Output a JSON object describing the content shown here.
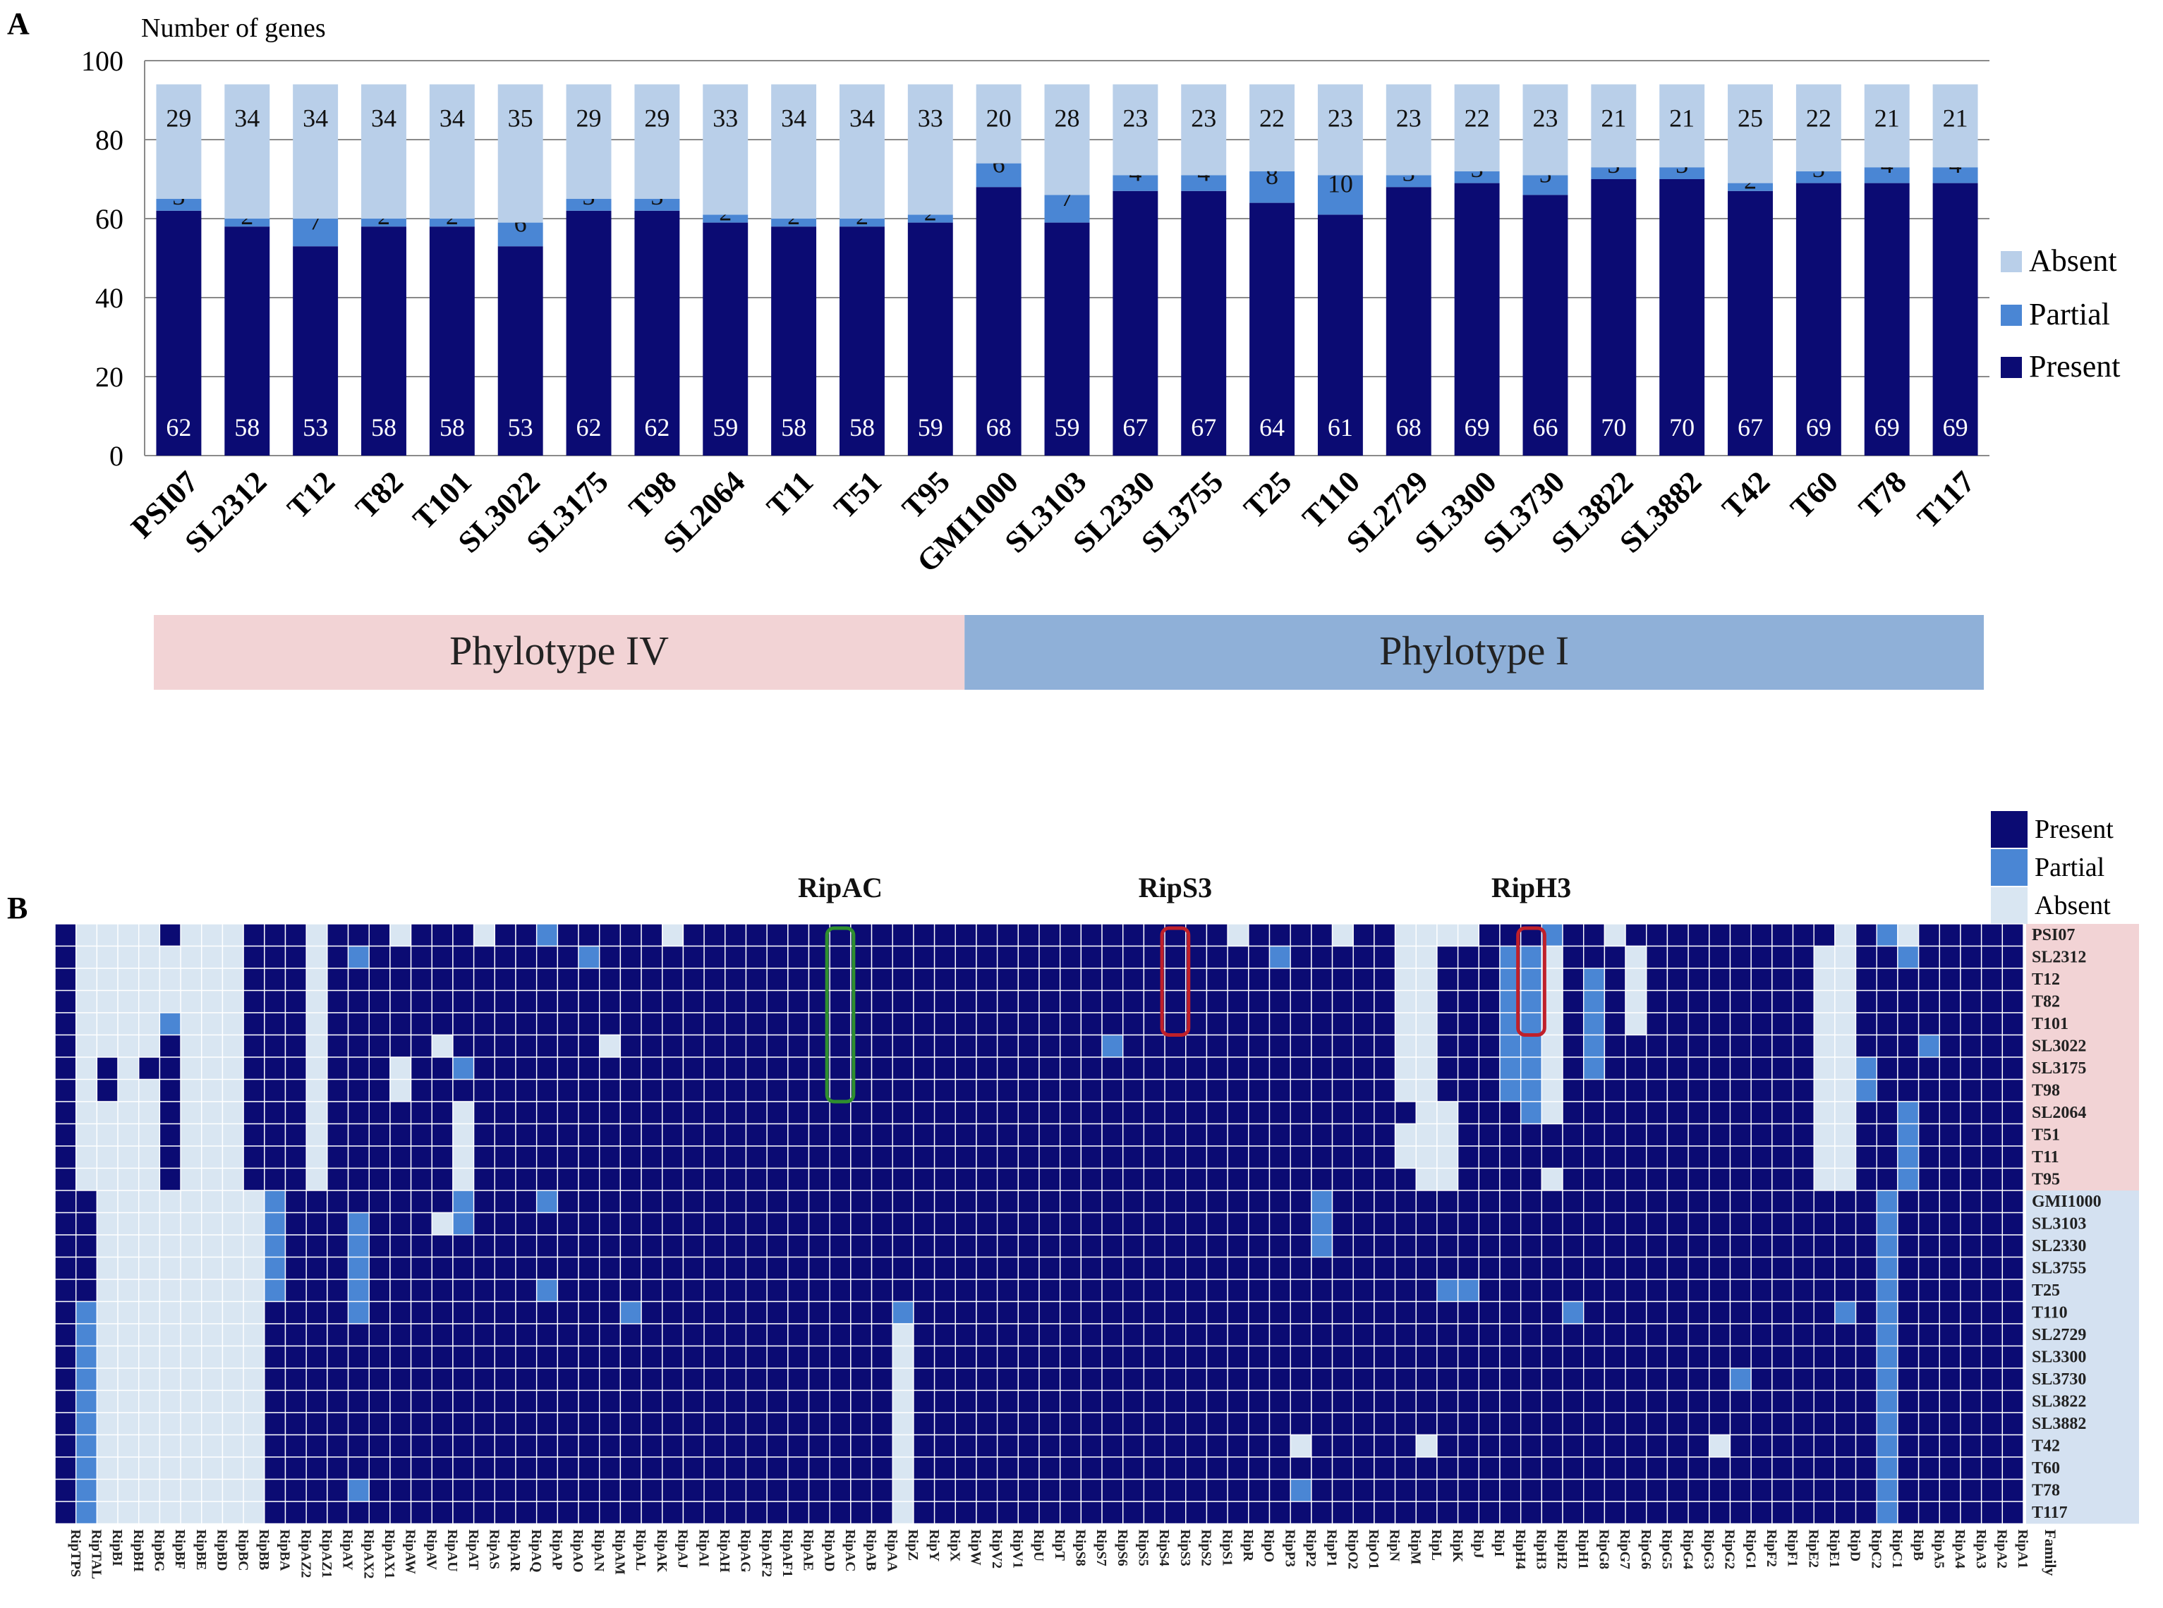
{
  "chart_data": [
    {
      "panel_label": "A",
      "type": "bar",
      "stacked": true,
      "ylabel": "Number of genes",
      "ylim": [
        0,
        100
      ],
      "yticks": [
        0,
        20,
        40,
        60,
        80,
        100
      ],
      "categories": [
        "PSI07",
        "SL2312",
        "T12",
        "T82",
        "T101",
        "SL3022",
        "SL3175",
        "T98",
        "SL2064",
        "T11",
        "T51",
        "T95",
        "GMI1000",
        "SL3103",
        "SL2330",
        "SL3755",
        "T25",
        "T110",
        "SL2729",
        "SL3300",
        "SL3730",
        "SL3822",
        "SL3882",
        "T42",
        "T60",
        "T78",
        "T117"
      ],
      "series": [
        {
          "name": "Present",
          "color": "#0b0b73",
          "values": [
            62,
            58,
            53,
            58,
            58,
            53,
            62,
            62,
            59,
            58,
            58,
            59,
            68,
            59,
            67,
            67,
            64,
            61,
            68,
            69,
            66,
            70,
            70,
            67,
            69,
            69,
            69
          ]
        },
        {
          "name": "Partial",
          "color": "#4a86d4",
          "values": [
            3,
            2,
            7,
            2,
            2,
            6,
            3,
            3,
            2,
            2,
            2,
            2,
            6,
            7,
            4,
            4,
            8,
            10,
            3,
            3,
            5,
            3,
            3,
            2,
            3,
            4,
            4
          ]
        },
        {
          "name": "Absent",
          "color": "#b9cfe9",
          "values": [
            29,
            34,
            34,
            34,
            34,
            35,
            29,
            29,
            33,
            34,
            34,
            33,
            20,
            28,
            23,
            23,
            22,
            23,
            23,
            22,
            23,
            21,
            21,
            25,
            22,
            21,
            21
          ]
        }
      ],
      "legend": {
        "position": "right",
        "items": [
          "Absent",
          "Partial",
          "Present"
        ]
      },
      "groups": [
        {
          "label": "Phylotype  IV",
          "color": "#f2d3d5",
          "start": 0,
          "end": 11
        },
        {
          "label": "Phylotype  I",
          "color": "#8fb0d8",
          "start": 12,
          "end": 26
        }
      ]
    },
    {
      "panel_label": "B",
      "type": "heatmap",
      "legend": {
        "position": "top-right",
        "items": [
          {
            "label": "Present",
            "color": "#0b0b73"
          },
          {
            "label": "Partial",
            "color": "#4a86d4"
          },
          {
            "label": "Absent",
            "color": "#d9e6f2"
          }
        ]
      },
      "strains": [
        "PSI07",
        "SL2312",
        "T12",
        "T82",
        "T101",
        "SL3022",
        "SL3175",
        "T98",
        "SL2064",
        "T51",
        "T11",
        "T95",
        "GMI1000",
        "SL3103",
        "SL2330",
        "SL3755",
        "T25",
        "T110",
        "SL2729",
        "SL3300",
        "SL3730",
        "SL3822",
        "SL3882",
        "T42",
        "T60",
        "T78",
        "T117"
      ],
      "phylotype_iv_rows": 12,
      "x_axis_last_label": "Family",
      "families": [
        "RipTPS",
        "RipTAL",
        "RipBI",
        "RipBH",
        "RipBG",
        "RipBF",
        "RipBE",
        "RipBD",
        "RipBC",
        "RipBB",
        "RipBA",
        "RipAZ2",
        "RipAZ1",
        "RipAY",
        "RipAX2",
        "RipAX1",
        "RipAW",
        "RipAV",
        "RipAU",
        "RipAT",
        "RipAS",
        "RipAR",
        "RipAQ",
        "RipAP",
        "RipAO",
        "RipAN",
        "RipAM",
        "RipAL",
        "RipAK",
        "RipAJ",
        "RipAI",
        "RipAH",
        "RipAG",
        "RipAF2",
        "RipAF1",
        "RipAE",
        "RipAD",
        "RipAC",
        "RipAB",
        "RipAA",
        "RipZ",
        "RipY",
        "RipX",
        "RipW",
        "RipV2",
        "RipV1",
        "RipU",
        "RipT",
        "RipS8",
        "RipS7",
        "RipS6",
        "RipS5",
        "RipS4",
        "RipS3",
        "RipS2",
        "RipS1",
        "RipR",
        "RipO",
        "RipP3",
        "RipP2",
        "RipP1",
        "RipO2",
        "RipO1",
        "RipN",
        "RipM",
        "RipL",
        "RipK",
        "RipJ",
        "RipI",
        "RipH4",
        "RipH3",
        "RipH2",
        "RipH1",
        "RipG8",
        "RipG7",
        "RipG6",
        "RipG5",
        "RipG4",
        "RipG3",
        "RipG2",
        "RipG1",
        "RipF2",
        "RipF1",
        "RipE2",
        "RipE1",
        "RipD",
        "RipC2",
        "RipC1",
        "RipB",
        "RipA5",
        "RipA4",
        "RipA3",
        "RipA2",
        "RipA1"
      ],
      "matrix_code": "0 = absent, 1 = present, 2 = partial; one string per strain, one character per family",
      "matrix": [
        "1000010001110111011101121111101111111111111111111111111101111011000011121101111111111012011111",
        "1000000001110121111111111211111111111111111111111111111111211111001112201110111111110011211111",
        "1000000001110111111111111111111111111111111111111111111111111111001112201210111111110011111111",
        "1000000001110111111111111111111111111111111111111111111111111111001112201210111111110011111111",
        "1000020001110111111111111111111111111111111111111111111111111111001112201210111111110011111111",
        "1000010001110111110111111101111111111111111111111121111111111111001112201211111111110011121111",
        "1010110001110111011211111111111111111111111111111111111111111111001112201211111111110021111111",
        "1010010001110111011111111111111111111111111111111111111111111111001112201111111111110021111111",
        "1000010001110111111011111111111111111111111111111111111111111111100111201111111111110011211111",
        "1000010001110111111011111111111111111111111111111111111111111111000111111111111111110011211111",
        "1000010001110111111011111111111111111111111111111111111111111111000111111111111111110011211111",
        "1000010001110111111011111111111111111111111111111111111111111111100111101111111111110011211111",
        "1100000000211111111211121111111111111111111111111111111111112111111111111111111111111112111111",
        "1100000000211121110211111111111111111111111111111111111111112111111111111111111111111112111111",
        "1100000000211121111111111111111111111111111111111111111111112111111111111111111111111112111111",
        "1100000000211121111111111111111111111111111111111111111111111111111111111111111111111112111111",
        "1100000000211121111111121111111111111111111111111111111111111111112211111111111111111112111111",
        "1200000000111121111111111112111111111111211111111111111111111111111111112111111111111212111111",
        "1200000000111111111111111111111111111111011111111111111111111111111111111111111111111112111111",
        "1200000000111111111111111111111111111111011111111111111111111111111111111111111111111112111111",
        "1200000000111111111111111111111111111111011111111111111111111111111111111111111121111112111111",
        "1200000000111111111111111111111111111111011111111111111111111111111111111111111111111112111111",
        "1200000000111111111111111111111111111111011111111111111111111111111111111111111111111112111111",
        "1200000000111111111111111111111111111111011111111111111111101111101111111111111011111112111111",
        "1200000000111111111111111111111111111111011111111111111111111111111111111111111111111112111111",
        "1200000000111121111111111111111111111111011111111111111111121111111111111111111111111112111111",
        "1200000000111111111111111111111111111111011111111111111111111111111111111111111111111112111111"
      ],
      "annotations": [
        {
          "label": "RipAC",
          "family": "RipAC",
          "rows": [
            0,
            7
          ],
          "box_color": "#2f8f2f"
        },
        {
          "label": "RipS3",
          "family": "RipS3",
          "rows": [
            0,
            4
          ],
          "box_color": "#c0202a"
        },
        {
          "label": "RipH3",
          "family": "RipH3",
          "rows": [
            0,
            4
          ],
          "box_color": "#c0202a"
        }
      ]
    }
  ]
}
